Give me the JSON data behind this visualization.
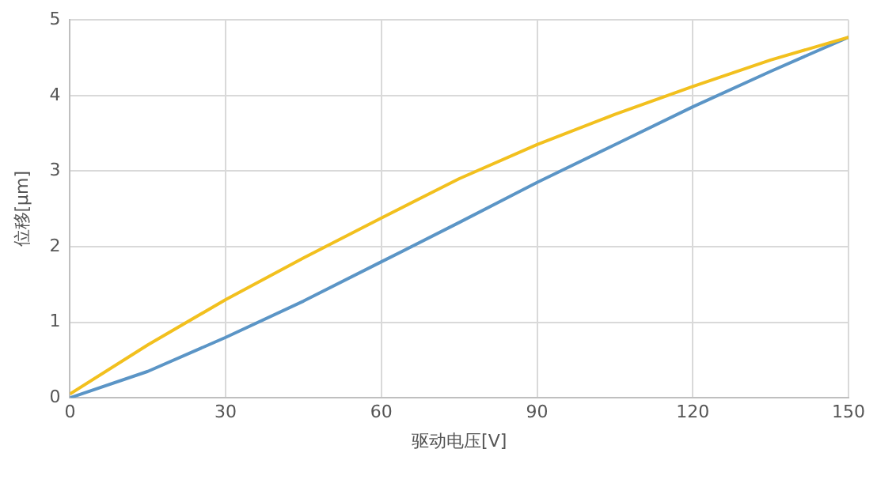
{
  "chart_data": {
    "type": "line",
    "xlabel": "驱动电压[V]",
    "ylabel": "位移[μm]",
    "x": [
      0,
      15,
      30,
      45,
      60,
      75,
      90,
      105,
      120,
      135,
      150
    ],
    "series": [
      {
        "color": "#f2c01e",
        "values": [
          0.05,
          0.7,
          1.3,
          1.85,
          2.38,
          2.9,
          3.35,
          3.75,
          4.12,
          4.47,
          4.77
        ]
      },
      {
        "color": "#5b95c6",
        "values": [
          0,
          0.35,
          0.8,
          1.28,
          1.8,
          2.32,
          2.85,
          3.35,
          3.85,
          4.32,
          4.77
        ]
      }
    ],
    "xlim": [
      0,
      150
    ],
    "xticks": [
      0,
      30,
      60,
      90,
      120,
      150
    ],
    "ylim": [
      0,
      5
    ],
    "yticks": [
      0,
      1,
      2,
      3,
      4,
      5
    ],
    "grid": true,
    "legend": false,
    "marker": "none",
    "line_style": "solid"
  }
}
